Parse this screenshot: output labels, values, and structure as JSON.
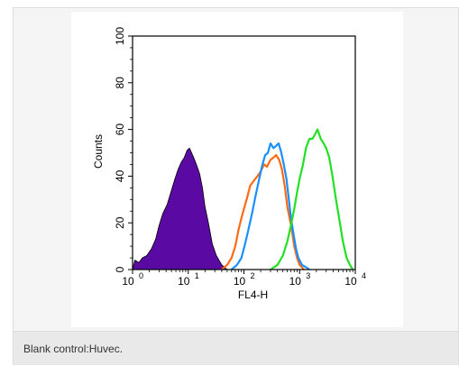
{
  "caption": "Blank control:Huvec.",
  "chart_data": {
    "type": "area",
    "xlabel": "FL4-H",
    "ylabel": "Counts",
    "x_scale": "log",
    "xlim": [
      1,
      10000
    ],
    "ylim": [
      0,
      100
    ],
    "x_ticks": [
      {
        "base": "10",
        "exp": "0"
      },
      {
        "base": "10",
        "exp": "1"
      },
      {
        "base": "10",
        "exp": "2"
      },
      {
        "base": "10",
        "exp": "3"
      },
      {
        "base": "10",
        "exp": "4"
      }
    ],
    "y_ticks": [
      "0",
      "20",
      "40",
      "60",
      "80",
      "100"
    ],
    "y_tick_values": [
      0,
      20,
      40,
      60,
      80,
      100
    ],
    "series": [
      {
        "color": "#5a0aa3",
        "filled": true,
        "x": [
          1,
          1.1,
          1.3,
          1.5,
          1.8,
          2.2,
          2.6,
          3,
          3.5,
          4.2,
          5,
          5.8,
          6.6,
          7.5,
          8.5,
          9.5,
          10.5,
          11.5,
          13,
          14.5,
          16,
          18,
          20,
          23,
          27,
          32,
          40,
          50
        ],
        "y": [
          0,
          4,
          3,
          5,
          6,
          9,
          13,
          19,
          24,
          28,
          34,
          39,
          43,
          46,
          48,
          51,
          52,
          50,
          47,
          44,
          41,
          35,
          27,
          20,
          11,
          6,
          2,
          0
        ]
      },
      {
        "color": "#ff6a13",
        "filled": false,
        "x": [
          40,
          50,
          60,
          70,
          80,
          90,
          100,
          115,
          130,
          150,
          175,
          200,
          230,
          260,
          300,
          340,
          380,
          430,
          480,
          540,
          600,
          700,
          800,
          900,
          1000,
          1200
        ],
        "y": [
          0,
          2,
          5,
          10,
          17,
          22,
          26,
          31,
          36,
          38,
          40,
          42,
          45,
          44,
          47,
          48,
          49,
          47,
          43,
          36,
          27,
          19,
          10,
          5,
          2,
          0
        ]
      },
      {
        "color": "#1a8fff",
        "filled": false,
        "x": [
          60,
          75,
          90,
          105,
          120,
          140,
          160,
          185,
          210,
          240,
          270,
          300,
          340,
          380,
          420,
          470,
          520,
          580,
          640,
          700,
          780,
          860,
          950,
          1100,
          1300,
          1500
        ],
        "y": [
          0,
          2,
          5,
          11,
          17,
          24,
          31,
          38,
          44,
          49,
          50,
          54,
          52,
          53,
          54,
          50,
          45,
          39,
          30,
          22,
          15,
          9,
          5,
          2,
          1,
          0
        ]
      },
      {
        "color": "#22e022",
        "filled": false,
        "x": [
          300,
          400,
          500,
          600,
          700,
          800,
          900,
          1000,
          1150,
          1300,
          1500,
          1700,
          1900,
          2100,
          2400,
          2700,
          3000,
          3400,
          3900,
          4500,
          5200,
          6000,
          7000,
          8000,
          9000
        ],
        "y": [
          0,
          2,
          6,
          12,
          19,
          26,
          33,
          39,
          45,
          52,
          56,
          56,
          58,
          60,
          56,
          54,
          52,
          48,
          40,
          30,
          21,
          12,
          5,
          2,
          0
        ]
      }
    ]
  }
}
